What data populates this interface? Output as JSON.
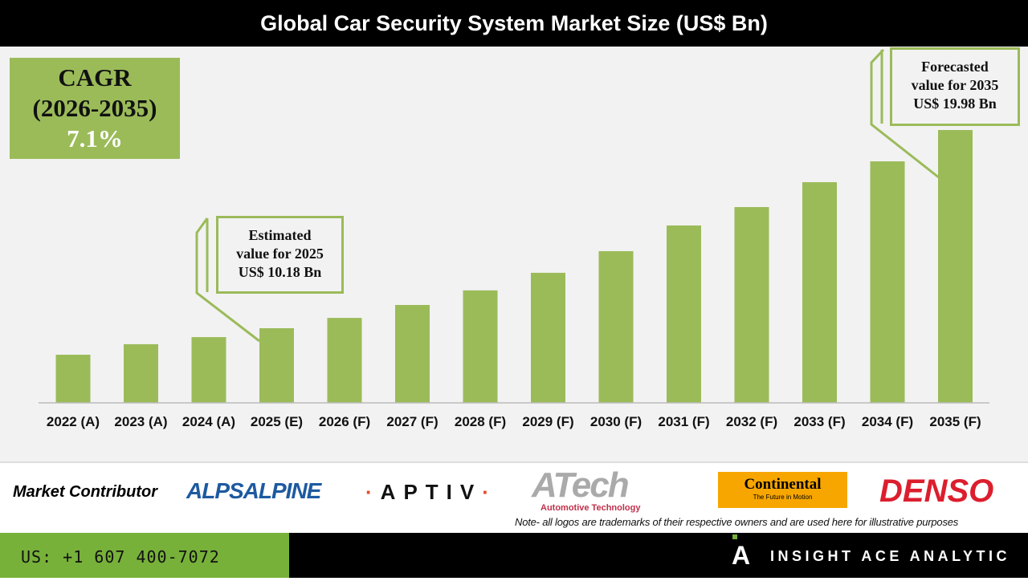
{
  "title": "Global Car Security System Market Size (US$ Bn)",
  "cagr": {
    "line1": "CAGR",
    "line2": "(2026-2035)",
    "value": "7.1%"
  },
  "callouts": {
    "estimated": {
      "l1": "Estimated",
      "l2": "value for 2025",
      "l3": "US$ 10.18 Bn"
    },
    "forecasted": {
      "l1": "Forecasted",
      "l2": "value for 2035",
      "l3": "US$ 19.98 Bn"
    }
  },
  "chart_data": {
    "type": "bar",
    "title": "Global Car Security System Market Size (US$ Bn)",
    "categories": [
      "2022 (A)",
      "2023 (A)",
      "2024 (A)",
      "2025 (E)",
      "2026 (F)",
      "2027 (F)",
      "2028 (F)",
      "2029 (F)",
      "2030 (F)",
      "2031 (F)",
      "2032 (F)",
      "2033 (F)",
      "2034 (F)",
      "2035 (F)"
    ],
    "values": [
      8.87,
      9.39,
      9.74,
      10.18,
      10.69,
      11.33,
      12.05,
      12.92,
      13.99,
      15.26,
      16.17,
      17.4,
      18.43,
      19.98
    ],
    "ylim": [
      6.5,
      20
    ],
    "grid": false,
    "bar_color": "#9bbb59"
  },
  "footer": {
    "market_contributor": "Market Contributor",
    "logos": [
      "ALPSALPINE",
      "APTIV",
      "ATech",
      "Automotive Technology",
      "Continental",
      "The Future in Motion",
      "DENSO"
    ],
    "note": "Note- all logos are trademarks of their respective owners and are used here for illustrative purposes",
    "phone": "US: +1 607 400-7072",
    "brand": "INSIGHT ACE ANALYTIC"
  }
}
